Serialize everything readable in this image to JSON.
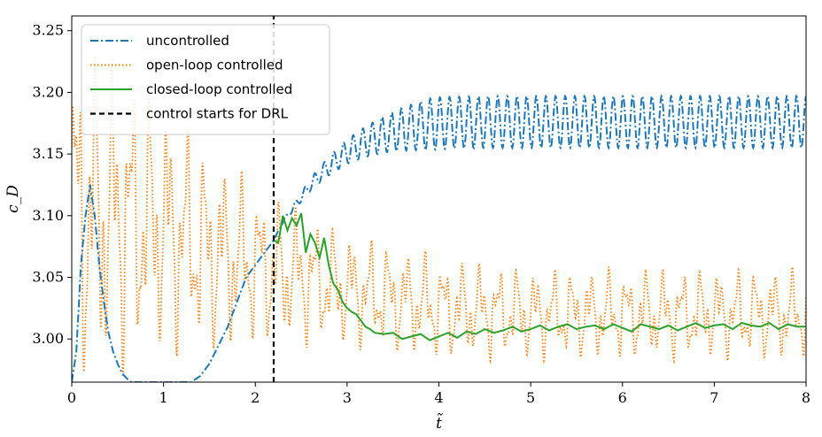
{
  "chart_data": {
    "type": "line",
    "title": "",
    "xlabel": "t̃",
    "ylabel": "c_D",
    "xlim": [
      0,
      8
    ],
    "ylim": [
      2.965,
      3.262
    ],
    "xticks": [
      0,
      1,
      2,
      3,
      4,
      5,
      6,
      7,
      8
    ],
    "xtick_labels": [
      "0",
      "1",
      "2",
      "3",
      "4",
      "5",
      "6",
      "7",
      "8"
    ],
    "yticks": [
      3.0,
      3.05,
      3.1,
      3.15,
      3.2,
      3.25
    ],
    "ytick_labels": [
      "3.00",
      "3.05",
      "3.10",
      "3.15",
      "3.20",
      "3.25"
    ],
    "grid": false,
    "legend_position": "top-left",
    "series": [
      {
        "name": "uncontrolled",
        "color": "#1f77b4",
        "style": "dashdot",
        "x": [
          0.0,
          0.05,
          0.1,
          0.15,
          0.2,
          0.25,
          0.3,
          0.35,
          0.4,
          0.45,
          0.5,
          0.55,
          0.6,
          0.65,
          1.3,
          1.4,
          1.5,
          1.6,
          1.7,
          1.8,
          1.9,
          2.0,
          2.1,
          2.2,
          2.3,
          2.4,
          2.5,
          2.6,
          2.7,
          2.8,
          2.9,
          3.0,
          3.2,
          3.4,
          3.6,
          3.8,
          4.0,
          4.5,
          5.0,
          5.5,
          6.0,
          6.5,
          7.0,
          7.5,
          8.0
        ],
        "y": [
          2.965,
          2.99,
          3.06,
          3.1,
          3.125,
          3.1,
          3.06,
          3.03,
          3.005,
          2.99,
          2.98,
          2.972,
          2.968,
          2.965,
          2.965,
          2.97,
          2.98,
          2.995,
          3.01,
          3.03,
          3.05,
          3.06,
          3.07,
          3.08,
          3.095,
          3.105,
          3.115,
          3.125,
          3.133,
          3.14,
          3.146,
          3.152,
          3.16,
          3.166,
          3.17,
          3.173,
          3.175,
          3.176,
          3.176,
          3.176,
          3.176,
          3.176,
          3.176,
          3.176,
          3.176
        ],
        "oscillation_amplitude": 0.021,
        "oscillation_period": 0.105
      },
      {
        "name": "open-loop controlled",
        "color": "#ff7f0e",
        "style": "dotted",
        "x": [
          0.0,
          0.5,
          1.0,
          1.5,
          2.0,
          2.5,
          3.0,
          4.0,
          5.0,
          6.0,
          7.0,
          8.0
        ],
        "y": [
          3.1,
          3.1,
          3.09,
          3.07,
          3.06,
          3.05,
          3.04,
          3.025,
          3.02,
          3.02,
          3.02,
          3.02
        ],
        "oscillation_amplitude": [
          0.16,
          0.14,
          0.11,
          0.09,
          0.07,
          0.06,
          0.05,
          0.045,
          0.04,
          0.04,
          0.04,
          0.04
        ]
      },
      {
        "name": "closed-loop controlled",
        "color": "#2ca02c",
        "style": "solid",
        "x": [
          2.2,
          2.25,
          2.3,
          2.35,
          2.4,
          2.45,
          2.5,
          2.55,
          2.6,
          2.65,
          2.7,
          2.75,
          2.8,
          2.85,
          2.9,
          2.95,
          3.0,
          3.05,
          3.1,
          3.15,
          3.2,
          3.25,
          3.3,
          3.4,
          3.5,
          3.6,
          3.7,
          3.8,
          3.9,
          4.0,
          4.1,
          4.2,
          4.3,
          4.4,
          4.5,
          4.6,
          4.7,
          4.8,
          4.9,
          5.0,
          5.1,
          5.2,
          5.3,
          5.4,
          5.5,
          5.6,
          5.7,
          5.8,
          5.9,
          6.0,
          6.1,
          6.2,
          6.3,
          6.4,
          6.5,
          6.6,
          6.7,
          6.8,
          6.9,
          7.0,
          7.1,
          7.2,
          7.3,
          7.4,
          7.5,
          7.6,
          7.7,
          7.8,
          7.9,
          8.0
        ],
        "y": [
          3.08,
          3.078,
          3.1,
          3.088,
          3.098,
          3.092,
          3.102,
          3.07,
          3.085,
          3.078,
          3.066,
          3.082,
          3.06,
          3.045,
          3.04,
          3.03,
          3.025,
          3.022,
          3.02,
          3.015,
          3.01,
          3.008,
          3.005,
          3.004,
          3.005,
          3.0,
          3.002,
          3.004,
          2.999,
          3.002,
          3.005,
          3.001,
          3.006,
          3.004,
          3.008,
          3.005,
          3.007,
          3.01,
          3.006,
          3.008,
          3.011,
          3.007,
          3.01,
          3.012,
          3.008,
          3.01,
          3.011,
          3.008,
          3.012,
          3.009,
          3.006,
          3.012,
          3.01,
          3.008,
          3.011,
          3.007,
          3.01,
          3.013,
          3.009,
          3.011,
          3.012,
          3.008,
          3.013,
          3.011,
          3.01,
          3.013,
          3.008,
          3.012,
          3.01,
          3.01
        ]
      },
      {
        "name": "control starts for DRL",
        "color": "#000000",
        "style": "dashed",
        "x": [
          2.2,
          2.2
        ],
        "y": [
          2.965,
          3.262
        ]
      }
    ]
  }
}
